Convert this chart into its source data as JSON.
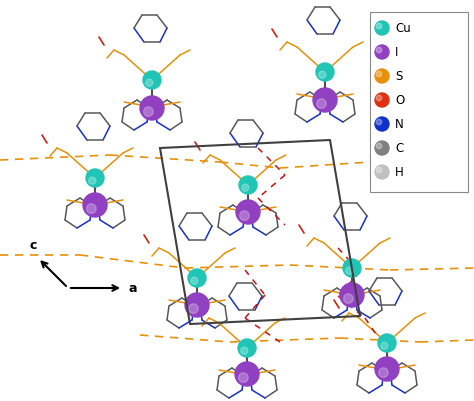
{
  "legend_atoms": [
    {
      "label": "Cu",
      "color": "#20C5B5"
    },
    {
      "label": "I",
      "color": "#9040C0"
    },
    {
      "label": "S",
      "color": "#E8900A"
    },
    {
      "label": "O",
      "color": "#E03010"
    },
    {
      "label": "N",
      "color": "#1030CC"
    },
    {
      "label": "C",
      "color": "#808080"
    },
    {
      "label": "H",
      "color": "#C0C0C0"
    }
  ],
  "bg_color": "#FFFFFF",
  "fig_width": 4.74,
  "fig_height": 4.01,
  "dpi": 100
}
